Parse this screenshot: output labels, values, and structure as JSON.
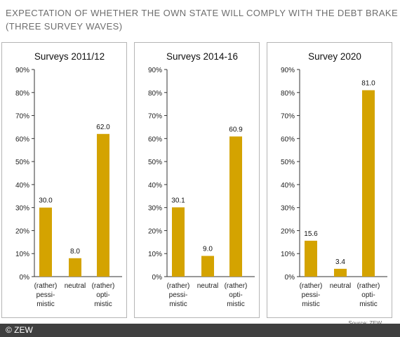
{
  "title": {
    "line1": "EXPECTATION OF WHETHER THE OWN STATE WILL COMPLY WITH THE DEBT BRAKE",
    "line2": "(THREE SURVEY WAVES)"
  },
  "source": "Source: ZEW",
  "footer": "© ZEW",
  "colors": {
    "bar": "#d4a300",
    "panel_border": "#b5b5b5",
    "axis": "#333333",
    "footer_bg": "#3f3f3f"
  },
  "chart_data": [
    {
      "type": "bar",
      "title": "Surveys 2011/12",
      "categories": [
        [
          "(rather)",
          "pessi-",
          "mistic"
        ],
        [
          "neutral"
        ],
        [
          "(rather)",
          "opti-",
          "mistic"
        ]
      ],
      "values": [
        30.0,
        8.0,
        62.0
      ],
      "value_labels": [
        "30.0",
        "8.0",
        "62.0"
      ],
      "yticks": [
        "0%",
        "10%",
        "20%",
        "30%",
        "40%",
        "50%",
        "60%",
        "70%",
        "80%",
        "90%"
      ],
      "ylim": [
        0,
        90
      ],
      "grid": false
    },
    {
      "type": "bar",
      "title": "Surveys 2014-16",
      "categories": [
        [
          "(rather)",
          "pessi-",
          "mistic"
        ],
        [
          "neutral"
        ],
        [
          "(rather)",
          "opti-",
          "mistic"
        ]
      ],
      "values": [
        30.1,
        9.0,
        60.9
      ],
      "value_labels": [
        "30.1",
        "9.0",
        "60.9"
      ],
      "yticks": [
        "0%",
        "10%",
        "20%",
        "30%",
        "40%",
        "50%",
        "60%",
        "70%",
        "80%",
        "90%"
      ],
      "ylim": [
        0,
        90
      ],
      "grid": false
    },
    {
      "type": "bar",
      "title": "Survey 2020",
      "categories": [
        [
          "(rather)",
          "pessi-",
          "mistic"
        ],
        [
          "neutral"
        ],
        [
          "(rather)",
          "opti-",
          "mistic"
        ]
      ],
      "values": [
        15.6,
        3.4,
        81.0
      ],
      "value_labels": [
        "15.6",
        "3.4",
        "81.0"
      ],
      "yticks": [
        "0%",
        "10%",
        "20%",
        "30%",
        "40%",
        "50%",
        "60%",
        "70%",
        "80%",
        "90%"
      ],
      "ylim": [
        0,
        90
      ],
      "grid": false
    }
  ]
}
